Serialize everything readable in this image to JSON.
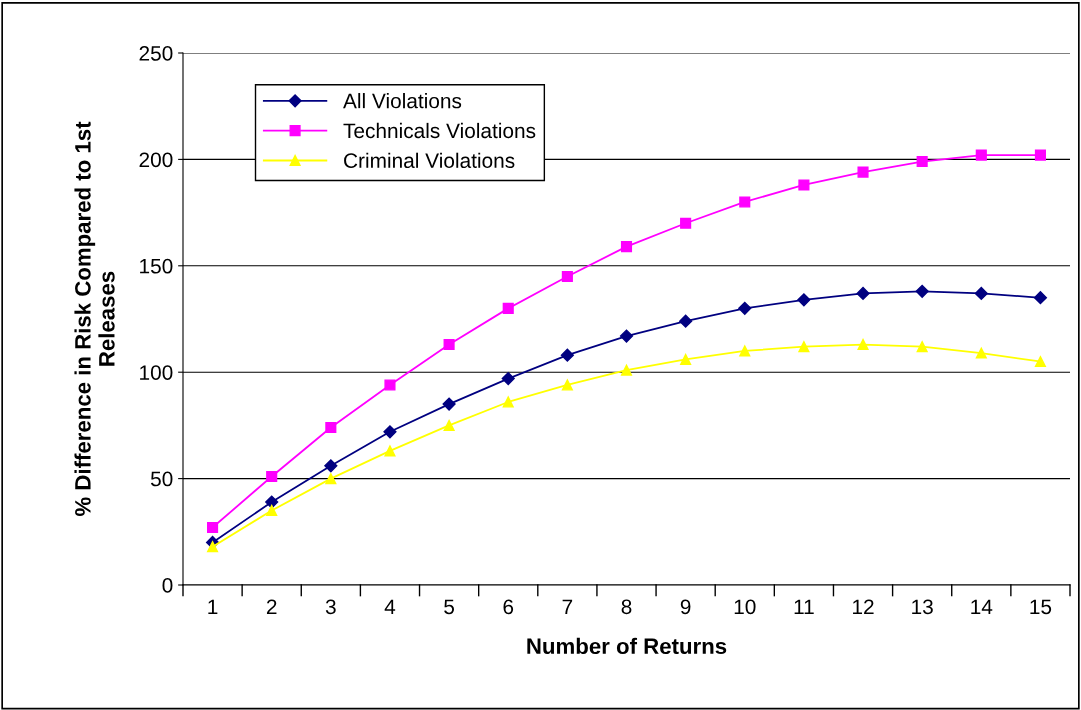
{
  "chart_data": {
    "type": "line",
    "xlabel": "Number of Returns",
    "ylabel": "% Difference in Risk Compared to 1st\nReleases",
    "categories": [
      "1",
      "2",
      "3",
      "4",
      "5",
      "6",
      "7",
      "8",
      "9",
      "10",
      "11",
      "12",
      "13",
      "14",
      "15"
    ],
    "series": [
      {
        "name": "All Violations",
        "color": "#000080",
        "marker": "diamond",
        "values": [
          20,
          39,
          56,
          72,
          85,
          97,
          108,
          117,
          124,
          130,
          134,
          137,
          138,
          137,
          135
        ]
      },
      {
        "name": "Technicals Violations",
        "color": "#ff00ff",
        "marker": "square",
        "values": [
          27,
          51,
          74,
          94,
          113,
          130,
          145,
          159,
          170,
          180,
          188,
          194,
          199,
          202,
          202
        ]
      },
      {
        "name": "Criminal Violations",
        "color": "#ffff00",
        "marker": "triangle",
        "values": [
          18,
          35,
          50,
          63,
          75,
          86,
          94,
          101,
          106,
          110,
          112,
          113,
          112,
          109,
          105
        ]
      }
    ],
    "ylim": [
      0,
      250
    ],
    "yticks": [
      0,
      50,
      100,
      150,
      200,
      250
    ],
    "grid": "y",
    "legend": "top left",
    "line_style": "solid"
  }
}
